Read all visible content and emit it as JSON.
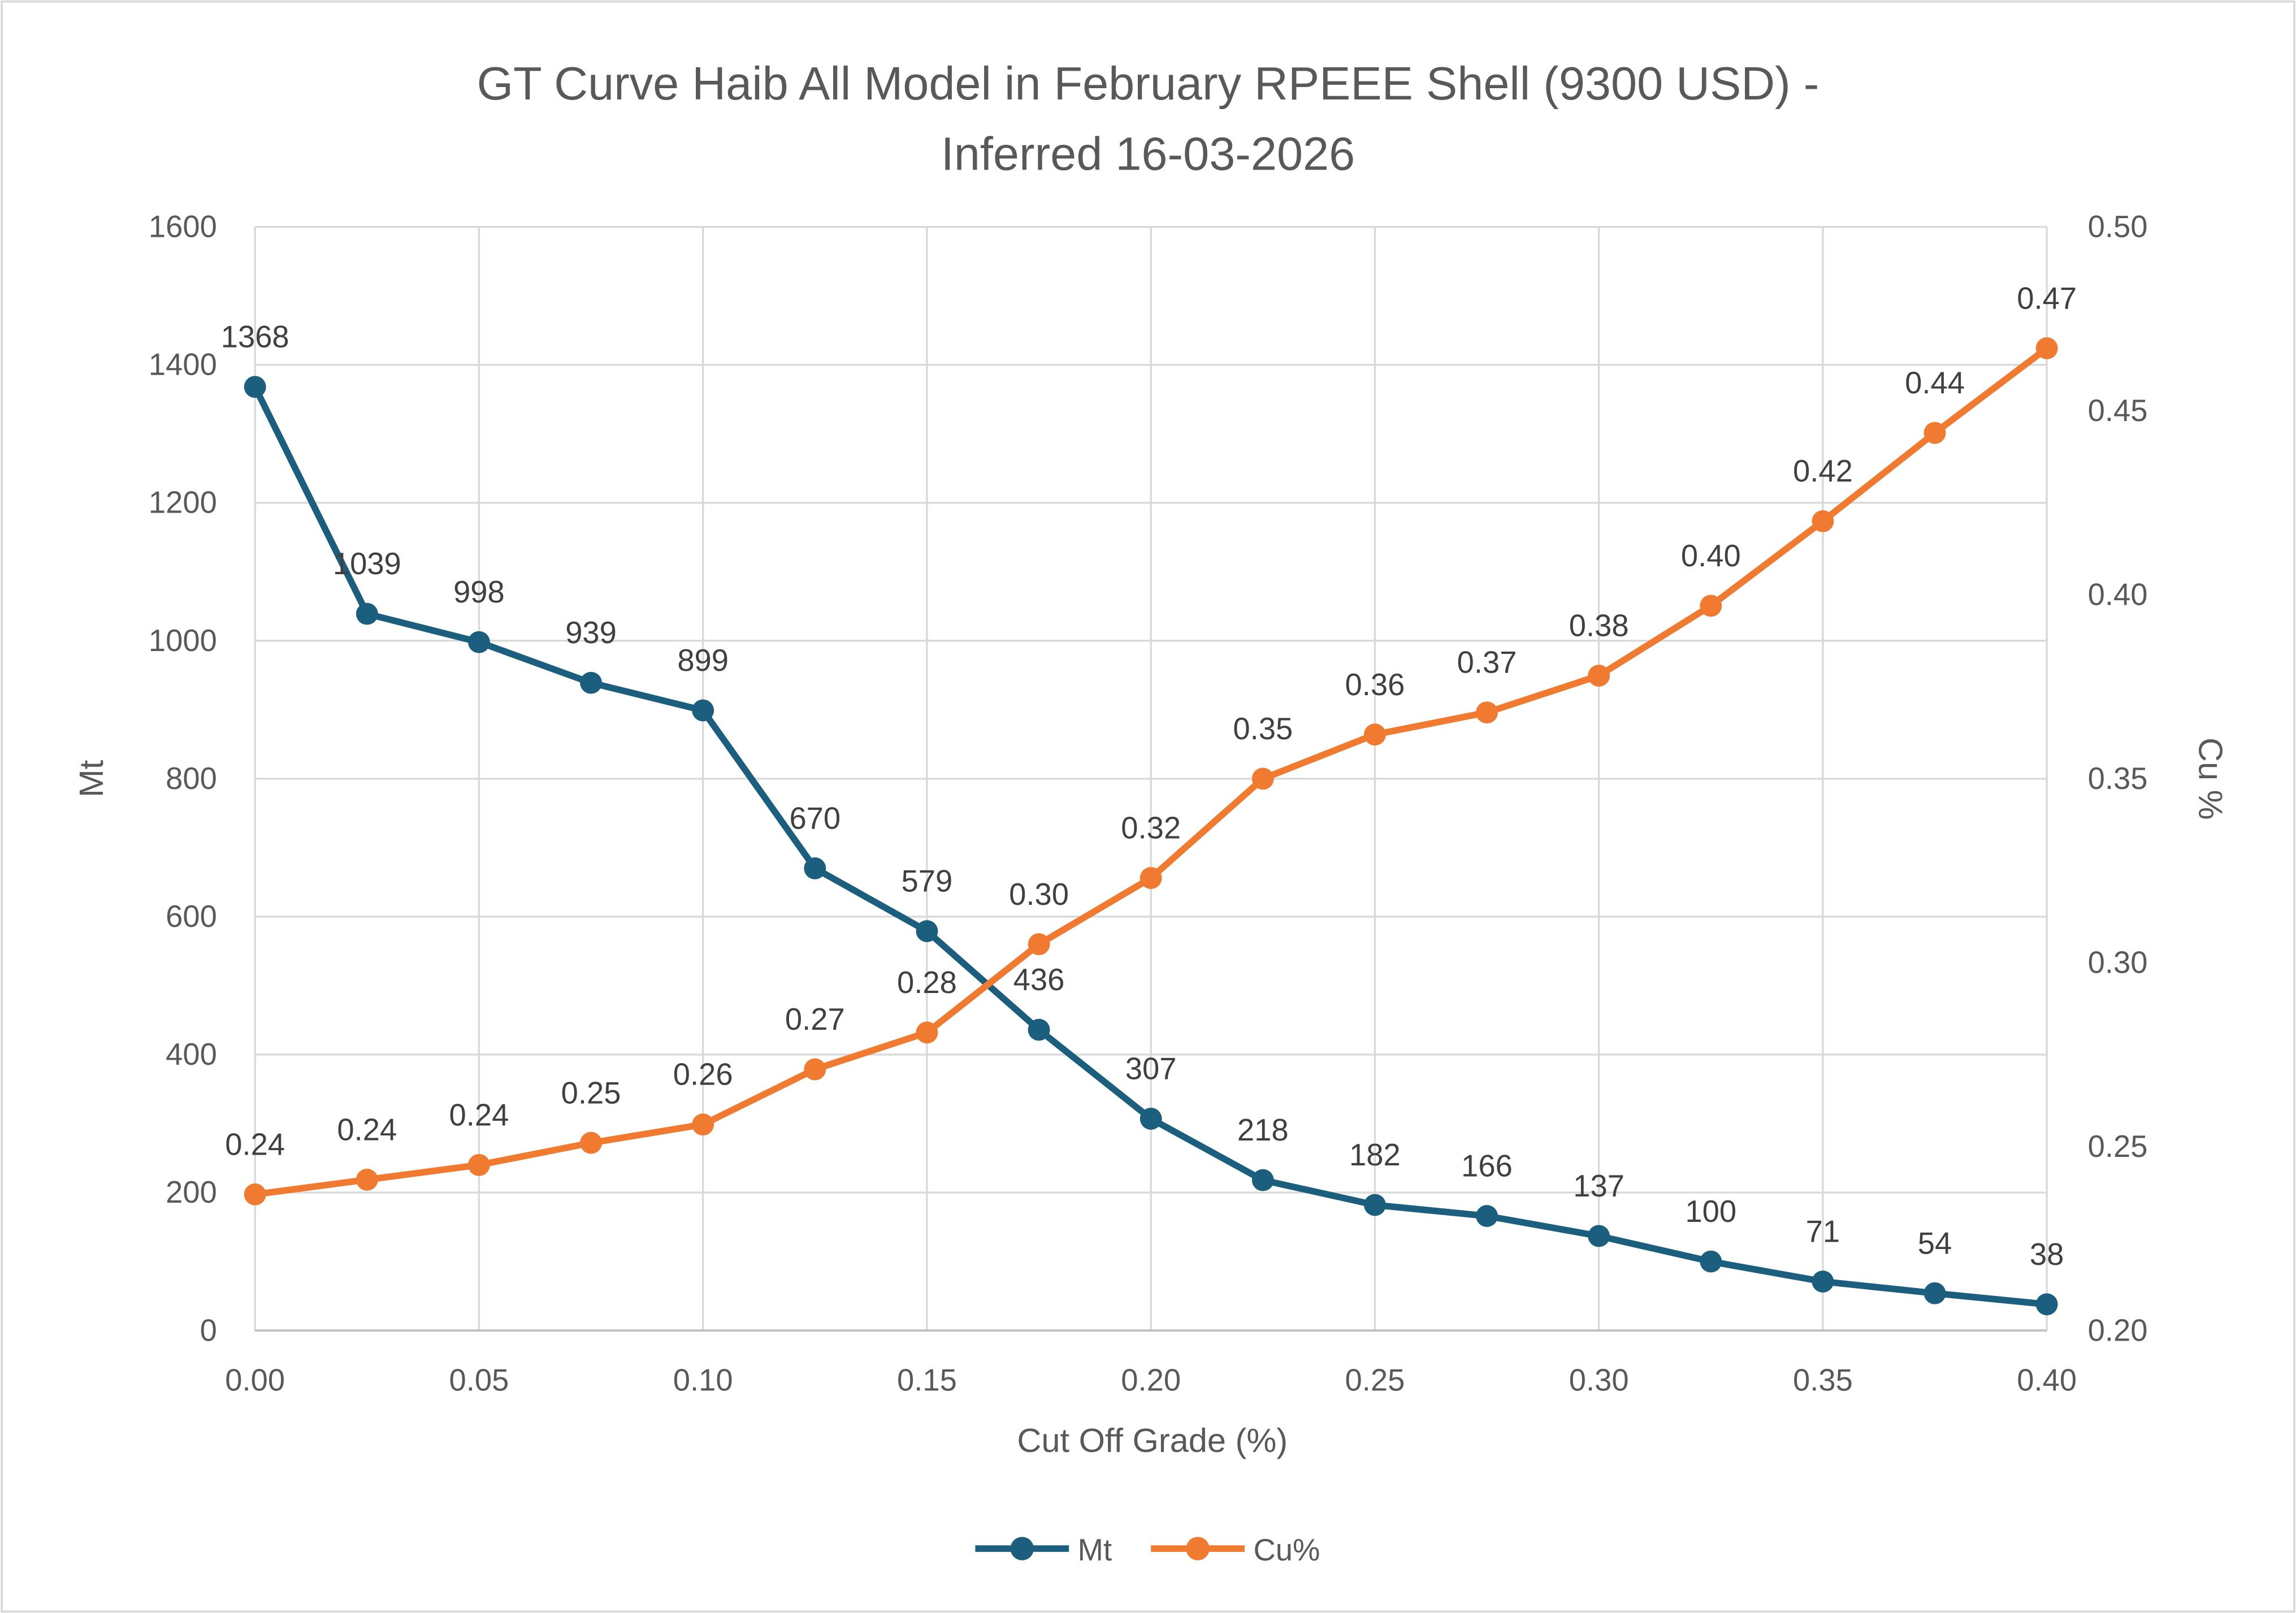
{
  "chart_data": {
    "type": "line",
    "title": [
      "GT Curve Haib All Model in February RPEEE Shell (9300 USD) -",
      "Inferred 16-03-2026"
    ],
    "xlabel": "Cut Off Grade (%)",
    "ylabel": "Mt",
    "y2label": "Cu %",
    "xlim": [
      0,
      0.4
    ],
    "ylim": [
      0,
      1600
    ],
    "y2lim": [
      0.2,
      0.5
    ],
    "x_ticks": [
      "0.00",
      "0.05",
      "0.10",
      "0.15",
      "0.20",
      "0.25",
      "0.30",
      "0.35",
      "0.40"
    ],
    "y_ticks": [
      "0",
      "200",
      "400",
      "600",
      "800",
      "1000",
      "1200",
      "1400",
      "1600"
    ],
    "y2_ticks": [
      "0.20",
      "0.25",
      "0.30",
      "0.35",
      "0.40",
      "0.45",
      "0.50"
    ],
    "grid": true,
    "legend_position": "bottom",
    "x": [
      0,
      0.025,
      0.05,
      0.075,
      0.1,
      0.125,
      0.15,
      0.175,
      0.2,
      0.225,
      0.25,
      0.275,
      0.3,
      0.325,
      0.35,
      0.375,
      0.4
    ],
    "series": [
      {
        "name": "Mt",
        "axis": "left",
        "color": "#1B5E7E",
        "values": [
          1368,
          1039,
          998,
          939,
          899,
          670,
          579,
          436,
          307,
          218,
          182,
          166,
          137,
          100,
          71,
          54,
          38
        ],
        "labels": [
          "1368",
          "1039",
          "998",
          "939",
          "899",
          "670",
          "579",
          "436",
          "307",
          "218",
          "182",
          "166",
          "137",
          "100",
          "71",
          "54",
          "38"
        ]
      },
      {
        "name": "Cu%",
        "axis": "right",
        "color": "#F07A30",
        "values": [
          0.237,
          0.241,
          0.245,
          0.251,
          0.256,
          0.271,
          0.281,
          0.305,
          0.323,
          0.35,
          0.362,
          0.368,
          0.378,
          0.397,
          0.42,
          0.444,
          0.467
        ],
        "labels": [
          "0.24",
          "0.24",
          "0.24",
          "0.25",
          "0.26",
          "0.27",
          "0.28",
          "0.30",
          "0.32",
          "0.35",
          "0.36",
          "0.37",
          "0.38",
          "0.40",
          "0.42",
          "0.44",
          "0.47"
        ]
      }
    ]
  }
}
